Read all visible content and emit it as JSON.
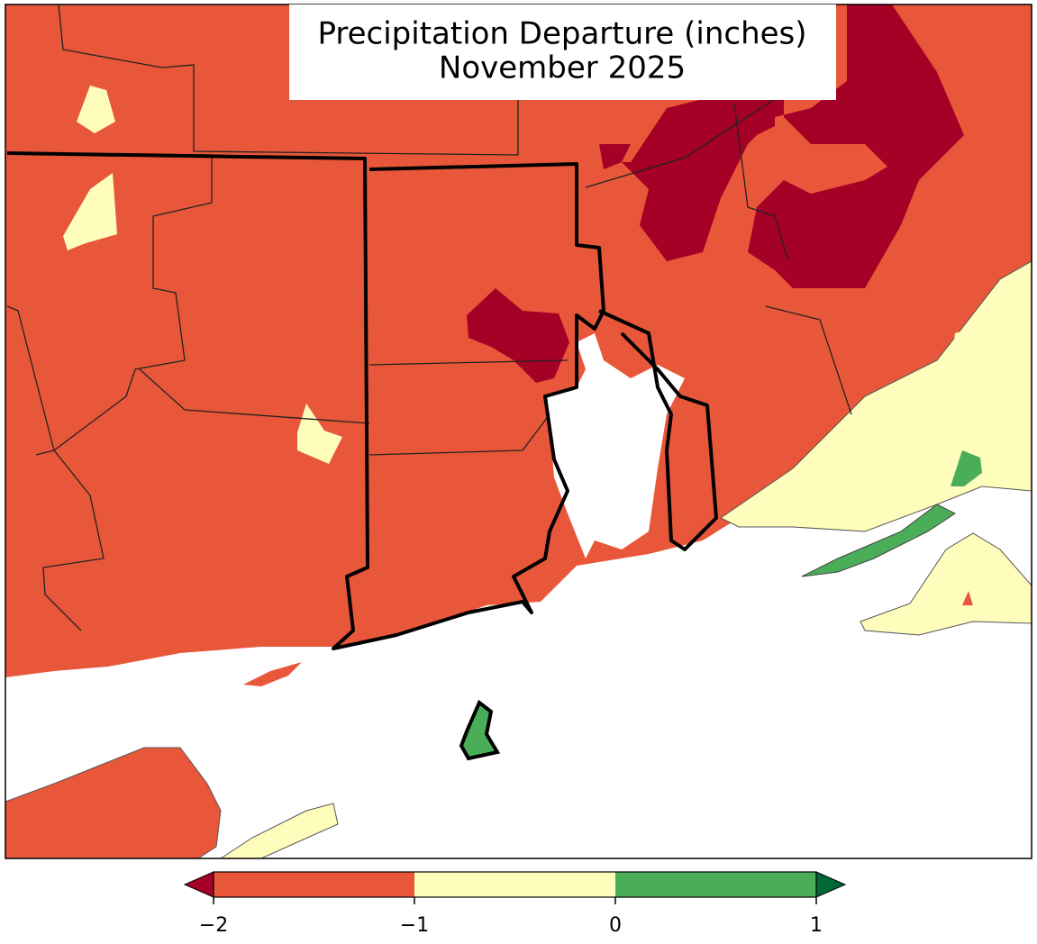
{
  "map": {
    "title": "Precipitation Departure (inches)",
    "subtitle": "November 2025"
  },
  "colorbar": {
    "range": [
      -2,
      1
    ],
    "bins": [
      -2,
      -1,
      0,
      1
    ],
    "colors": [
      "#e9573a",
      "#fefdbc",
      "#4aae59"
    ],
    "under_color": "#a50026",
    "over_color": "#006837",
    "ticks": [
      {
        "value": -2,
        "label": "−2"
      },
      {
        "value": -1,
        "label": "−1"
      },
      0,
      1
    ]
  }
}
